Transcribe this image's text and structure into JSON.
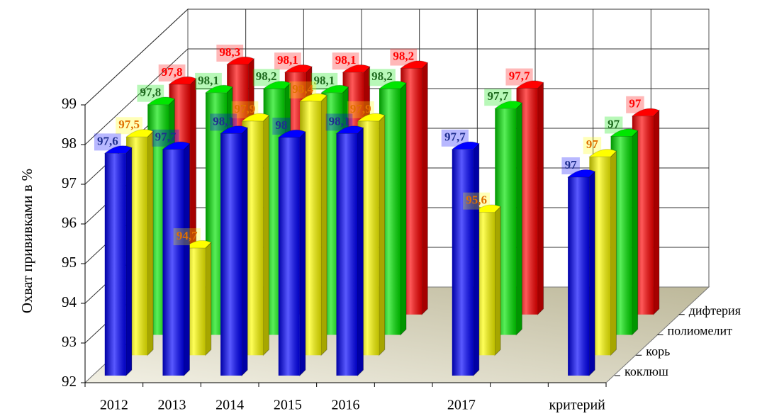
{
  "chart_data": {
    "type": "bar3d",
    "y_label": "Охват прививками в %",
    "categories": [
      "2012",
      "2013",
      "2014",
      "2015",
      "2016",
      null,
      "2017",
      null,
      "критерий"
    ],
    "series": [
      {
        "name": "коклюш",
        "color": "#0000ff",
        "label_color": "#1f2f8f",
        "values": [
          97.6,
          97.7,
          98.1,
          98,
          98.1,
          null,
          97.7,
          null,
          97
        ],
        "value_labels": [
          "97,6",
          "97,7",
          "98,1",
          "98",
          "98,1",
          null,
          "97,7",
          null,
          "97"
        ]
      },
      {
        "name": "корь",
        "color": "#ffff00",
        "label_color": "#e07000",
        "values": [
          97.5,
          94.7,
          97.9,
          98.4,
          97.9,
          null,
          95.6,
          null,
          97
        ],
        "value_labels": [
          "97,5",
          "94,7",
          "97,9",
          "98,4",
          "97,9",
          null,
          "95,6",
          null,
          "97"
        ]
      },
      {
        "name": "полиомелит",
        "color": "#00e600",
        "label_color": "#1f6b1f",
        "values": [
          97.8,
          98.1,
          98.2,
          98.1,
          98.2,
          null,
          97.7,
          null,
          97
        ],
        "value_labels": [
          "97,8",
          "98,1",
          "98,2",
          "98,1",
          "98,2",
          null,
          "97,7",
          null,
          "97"
        ]
      },
      {
        "name": "дифтерия",
        "color": "#ff0000",
        "label_color": "#ff0000",
        "values": [
          97.8,
          98.3,
          98.1,
          98.1,
          98.2,
          null,
          97.7,
          null,
          97
        ],
        "value_labels": [
          "97,8",
          "98,3",
          "98,1",
          "98,1",
          "98,2",
          null,
          "97,7",
          null,
          "97"
        ]
      }
    ],
    "ylim": [
      92,
      99
    ],
    "yticks": [
      92,
      93,
      94,
      95,
      96,
      97,
      98,
      99
    ],
    "grid": true
  }
}
